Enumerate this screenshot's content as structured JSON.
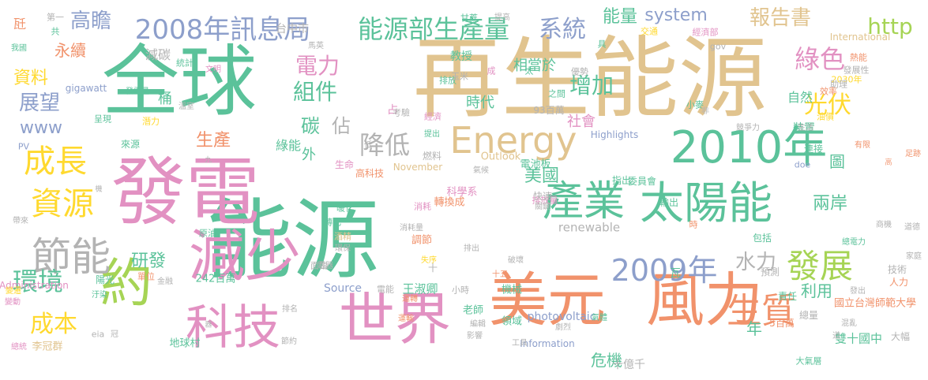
{
  "word_cloud": {
    "background": "#ffffff",
    "palette": {
      "green": "#5bc29a",
      "tan": "#e1c48f",
      "pink": "#e291c2",
      "orange": "#f1926b",
      "lime": "#a6d455",
      "yellow": "#ffd92f",
      "blue": "#8d9fcb",
      "gray": "#b3b3b3"
    },
    "words": [
      {
        "text": "能源",
        "weight": 100,
        "color": "green"
      },
      {
        "text": "再生能源",
        "weight": 95,
        "color": "tan"
      },
      {
        "text": "全球",
        "weight": 88,
        "color": "green"
      },
      {
        "text": "發電",
        "weight": 85,
        "color": "pink"
      },
      {
        "text": "美元",
        "weight": 70,
        "color": "orange"
      },
      {
        "text": "風力",
        "weight": 70,
        "color": "orange"
      },
      {
        "text": "世界",
        "weight": 66,
        "color": "pink"
      },
      {
        "text": "減少",
        "weight": 66,
        "color": "pink"
      },
      {
        "text": "約",
        "weight": 64,
        "color": "lime"
      },
      {
        "text": "科技",
        "weight": 58,
        "color": "pink"
      },
      {
        "text": "2010年",
        "weight": 56,
        "color": "green"
      },
      {
        "text": "太陽能",
        "weight": 56,
        "color": "green"
      },
      {
        "text": "產業",
        "weight": 50,
        "color": "green"
      },
      {
        "text": "節能",
        "weight": 50,
        "color": "gray"
      },
      {
        "text": "Energy",
        "weight": 46,
        "color": "tan"
      },
      {
        "text": "生質",
        "weight": 44,
        "color": "orange"
      },
      {
        "text": "發展",
        "weight": 42,
        "color": "lime"
      },
      {
        "text": "成長",
        "weight": 40,
        "color": "yellow"
      },
      {
        "text": "資源",
        "weight": 40,
        "color": "yellow"
      },
      {
        "text": "2009年",
        "weight": 38,
        "color": "blue"
      },
      {
        "text": "2008年訊息局",
        "weight": 34,
        "color": "blue"
      },
      {
        "text": "能源部生產量",
        "weight": 32,
        "color": "green"
      },
      {
        "text": "環境",
        "weight": 32,
        "color": "green"
      },
      {
        "text": "成本",
        "weight": 30,
        "color": "yellow"
      },
      {
        "text": "降低",
        "weight": 32,
        "color": "gray"
      },
      {
        "text": "綠色",
        "weight": 32,
        "color": "pink"
      },
      {
        "text": "光伏",
        "weight": 30,
        "color": "yellow"
      },
      {
        "text": "http",
        "weight": 28,
        "color": "lime"
      },
      {
        "text": "系統",
        "weight": 30,
        "color": "blue"
      },
      {
        "text": "組件",
        "weight": 28,
        "color": "green"
      },
      {
        "text": "電力",
        "weight": 28,
        "color": "pink"
      },
      {
        "text": "增加",
        "weight": 28,
        "color": "green"
      },
      {
        "text": "報告書",
        "weight": 26,
        "color": "tan"
      },
      {
        "text": "高瞻",
        "weight": 26,
        "color": "blue"
      },
      {
        "text": "展望",
        "weight": 26,
        "color": "blue"
      },
      {
        "text": "水力",
        "weight": 26,
        "color": "gray"
      },
      {
        "text": "system",
        "weight": 22,
        "color": "blue"
      },
      {
        "text": "能量",
        "weight": 22,
        "color": "green"
      },
      {
        "text": "佔",
        "weight": 24,
        "color": "gray"
      },
      {
        "text": "碳",
        "weight": 24,
        "color": "green"
      },
      {
        "text": "研發",
        "weight": 22,
        "color": "green"
      },
      {
        "text": "生產",
        "weight": 22,
        "color": "orange"
      },
      {
        "text": "美國",
        "weight": 22,
        "color": "green"
      },
      {
        "text": "兩岸",
        "weight": 22,
        "color": "green"
      },
      {
        "text": "利用",
        "weight": 20,
        "color": "green"
      },
      {
        "text": "危機",
        "weight": 20,
        "color": "green"
      },
      {
        "text": "www",
        "weight": 22,
        "color": "blue"
      },
      {
        "text": "資料",
        "weight": 22,
        "color": "yellow"
      },
      {
        "text": "永續",
        "weight": 20,
        "color": "orange"
      },
      {
        "text": "時代",
        "weight": 18,
        "color": "green"
      },
      {
        "text": "相當於",
        "weight": 18,
        "color": "green"
      },
      {
        "text": "年",
        "weight": 20,
        "color": "green"
      },
      {
        "text": "圖",
        "weight": 20,
        "color": "green"
      },
      {
        "text": "社會",
        "weight": 18,
        "color": "pink"
      },
      {
        "text": "renewable",
        "weight": 15,
        "color": "gray"
      },
      {
        "text": "雙十國中",
        "weight": 15,
        "color": "green"
      },
      {
        "text": "十億千",
        "weight": 14,
        "color": "gray"
      },
      {
        "text": "自然",
        "weight": 16,
        "color": "green"
      },
      {
        "text": "裝置",
        "weight": 14,
        "color": "green"
      },
      {
        "text": "減碳",
        "weight": 16,
        "color": "gray"
      },
      {
        "text": "桶",
        "weight": 18,
        "color": "green"
      },
      {
        "text": "外",
        "weight": 18,
        "color": "green"
      },
      {
        "text": "綠能",
        "weight": 16,
        "color": "green"
      },
      {
        "text": "王淑卿",
        "weight": 15,
        "color": "green"
      },
      {
        "text": "Source",
        "weight": 14,
        "color": "blue"
      },
      {
        "text": "photovoltaic",
        "weight": 14,
        "color": "blue"
      },
      {
        "text": "Outlook",
        "weight": 13,
        "color": "tan"
      },
      {
        "text": "International",
        "weight": 12,
        "color": "tan"
      },
      {
        "text": "gigawatt",
        "weight": 12,
        "color": "blue"
      },
      {
        "text": "Administration",
        "weight": 12,
        "color": "pink"
      },
      {
        "text": "Information",
        "weight": 12,
        "color": "blue"
      },
      {
        "text": "Highlights",
        "weight": 12,
        "color": "blue"
      },
      {
        "text": "November",
        "weight": 12,
        "color": "tan"
      },
      {
        "text": "國立台灣師範大學",
        "weight": 13,
        "color": "orange"
      },
      {
        "text": "李冠群",
        "weight": 13,
        "color": "tan"
      },
      {
        "text": "地球村",
        "weight": 13,
        "color": "green"
      },
      {
        "text": "242百萬",
        "weight": 13,
        "color": "green"
      },
      {
        "text": "93百萬",
        "weight": 12,
        "color": "gray"
      },
      {
        "text": "5百萬",
        "weight": 12,
        "color": "orange"
      },
      {
        "text": "2030年",
        "weight": 11,
        "color": "yellow"
      },
      {
        "text": "台中市",
        "weight": 14,
        "color": "gray"
      },
      {
        "text": "教授",
        "weight": 14,
        "color": "green"
      },
      {
        "text": "占",
        "weight": 14,
        "color": "pink"
      },
      {
        "text": "瓦",
        "weight": 14,
        "color": "green"
      },
      {
        "text": "科學系",
        "weight": 13,
        "color": "pink"
      },
      {
        "text": "轉換成",
        "weight": 13,
        "color": "orange"
      },
      {
        "text": "電池板",
        "weight": 13,
        "color": "green"
      },
      {
        "text": "委員會",
        "weight": 12,
        "color": "green"
      },
      {
        "text": "指出",
        "weight": 12,
        "color": "green"
      },
      {
        "text": "輸出",
        "weight": 12,
        "color": "green"
      },
      {
        "text": "包括",
        "weight": 12,
        "color": "green"
      },
      {
        "text": "預測",
        "weight": 12,
        "color": "gray"
      },
      {
        "text": "機械",
        "weight": 13,
        "color": "green"
      },
      {
        "text": "老師",
        "weight": 13,
        "color": "green"
      },
      {
        "text": "領域",
        "weight": 13,
        "color": "green"
      },
      {
        "text": "責任",
        "weight": 12,
        "color": "green"
      },
      {
        "text": "總量",
        "weight": 12,
        "color": "gray"
      },
      {
        "text": "技術",
        "weight": 12,
        "color": "gray"
      },
      {
        "text": "人力",
        "weight": 12,
        "color": "orange"
      },
      {
        "text": "大幅",
        "weight": 12,
        "color": "gray"
      },
      {
        "text": "大氣層",
        "weight": 11,
        "color": "green"
      },
      {
        "text": "調節",
        "weight": 13,
        "color": "orange"
      },
      {
        "text": "高科技",
        "weight": 12,
        "color": "orange"
      },
      {
        "text": "生命",
        "weight": 12,
        "color": "pink"
      },
      {
        "text": "燃料",
        "weight": 12,
        "color": "gray"
      },
      {
        "text": "排放",
        "weight": 11,
        "color": "green"
      },
      {
        "text": "排放量",
        "weight": 11,
        "color": "pink"
      },
      {
        "text": "經濟",
        "weight": 11,
        "color": "pink"
      },
      {
        "text": "經濟部",
        "weight": 11,
        "color": "pink"
      },
      {
        "text": "之間",
        "weight": 11,
        "color": "green"
      },
      {
        "text": "考驗",
        "weight": 11,
        "color": "gray"
      },
      {
        "text": "玉米",
        "weight": 11,
        "color": "gray"
      },
      {
        "text": "甘蔗",
        "weight": 11,
        "color": "green"
      },
      {
        "text": "優勢",
        "weight": 11,
        "color": "gray"
      },
      {
        "text": "交通",
        "weight": 11,
        "color": "yellow"
      },
      {
        "text": "熱能",
        "weight": 11,
        "color": "orange"
      },
      {
        "text": "發展性",
        "weight": 11,
        "color": "gray"
      },
      {
        "text": "效率",
        "weight": 11,
        "color": "orange"
      },
      {
        "text": "助理",
        "weight": 11,
        "color": "gray"
      },
      {
        "text": "油價",
        "weight": 11,
        "color": "yellow"
      },
      {
        "text": "gov",
        "weight": 11,
        "color": "gray"
      },
      {
        "text": "小麥",
        "weight": 11,
        "color": "green"
      },
      {
        "text": "競爭力",
        "weight": 10,
        "color": "gray"
      },
      {
        "text": "生活",
        "weight": 10,
        "color": "gray"
      },
      {
        "text": "連接",
        "weight": 12,
        "color": "green"
      },
      {
        "text": "有限",
        "weight": 10,
        "color": "orange"
      },
      {
        "text": "足跡",
        "weight": 10,
        "color": "orange"
      },
      {
        "text": "doe",
        "weight": 11,
        "color": "blue"
      },
      {
        "text": "溫室",
        "weight": 10,
        "color": "gray"
      },
      {
        "text": "發電量",
        "weight": 10,
        "color": "green"
      },
      {
        "text": "潛力",
        "weight": 11,
        "color": "yellow"
      },
      {
        "text": "呈現",
        "weight": 11,
        "color": "green"
      },
      {
        "text": "統計",
        "weight": 11,
        "color": "green"
      },
      {
        "text": "文明",
        "weight": 10,
        "color": "pink"
      },
      {
        "text": "馬英",
        "weight": 10,
        "color": "gray"
      },
      {
        "text": "第一",
        "weight": 11,
        "color": "gray"
      },
      {
        "text": "我國",
        "weight": 10,
        "color": "green"
      },
      {
        "text": "共",
        "weight": 11,
        "color": "green"
      },
      {
        "text": "來源",
        "weight": 12,
        "color": "green"
      },
      {
        "text": "PV",
        "weight": 11,
        "color": "blue"
      },
      {
        "text": "九",
        "weight": 9,
        "color": "gray"
      },
      {
        "text": "快速",
        "weight": 12,
        "color": "gray"
      },
      {
        "text": "暖化",
        "weight": 11,
        "color": "green"
      },
      {
        "text": "轉化",
        "weight": 11,
        "color": "green"
      },
      {
        "text": "原油",
        "weight": 11,
        "color": "green"
      },
      {
        "text": "酒精",
        "weight": 11,
        "color": "tan"
      },
      {
        "text": "面臨",
        "weight": 11,
        "color": "gray"
      },
      {
        "text": "消耗",
        "weight": 11,
        "color": "pink"
      },
      {
        "text": "消耗量",
        "weight": 10,
        "color": "gray"
      },
      {
        "text": "關鍵",
        "weight": 10,
        "color": "gray"
      },
      {
        "text": "陽光",
        "weight": 12,
        "color": "green"
      },
      {
        "text": "單位",
        "weight": 11,
        "color": "orange"
      },
      {
        "text": "金融",
        "weight": 10,
        "color": "gray"
      },
      {
        "text": "汙染",
        "weight": 10,
        "color": "green"
      },
      {
        "text": "失序",
        "weight": 10,
        "color": "yellow"
      },
      {
        "text": "電器",
        "weight": 10,
        "color": "gray"
      },
      {
        "text": "環保",
        "weight": 10,
        "color": "gray"
      },
      {
        "text": "排出",
        "weight": 10,
        "color": "gray"
      },
      {
        "text": "電能",
        "weight": 11,
        "color": "gray"
      },
      {
        "text": "小時",
        "weight": 11,
        "color": "gray"
      },
      {
        "text": "十五",
        "weight": 10,
        "color": "orange"
      },
      {
        "text": "破壞",
        "weight": 10,
        "color": "gray"
      },
      {
        "text": "編輯",
        "weight": 10,
        "color": "gray"
      },
      {
        "text": "影響",
        "weight": 10,
        "color": "gray"
      },
      {
        "text": "劇烈",
        "weight": 10,
        "color": "gray"
      },
      {
        "text": "氣體",
        "weight": 10,
        "color": "green"
      },
      {
        "text": "工具",
        "weight": 10,
        "color": "gray"
      },
      {
        "text": "道",
        "weight": 10,
        "color": "gray"
      },
      {
        "text": "混亂",
        "weight": 10,
        "color": "gray"
      },
      {
        "text": "家庭",
        "weight": 10,
        "color": "gray"
      },
      {
        "text": "道德",
        "weight": 10,
        "color": "gray"
      },
      {
        "text": "商機",
        "weight": 10,
        "color": "gray"
      },
      {
        "text": "總電力",
        "weight": 10,
        "color": "green"
      },
      {
        "text": "發出",
        "weight": 10,
        "color": "gray"
      },
      {
        "text": "運轉",
        "weight": 10,
        "color": "orange"
      },
      {
        "text": "運輸",
        "weight": 10,
        "color": "orange"
      },
      {
        "text": "排名",
        "weight": 10,
        "color": "gray"
      },
      {
        "text": "節約",
        "weight": 10,
        "color": "gray"
      },
      {
        "text": "冠",
        "weight": 10,
        "color": "gray"
      },
      {
        "text": "eia",
        "weight": 11,
        "color": "gray"
      },
      {
        "text": "總統",
        "weight": 10,
        "color": "pink"
      },
      {
        "text": "變動",
        "weight": 10,
        "color": "pink"
      },
      {
        "text": "變遷",
        "weight": 10,
        "color": "yellow"
      },
      {
        "text": "帶來",
        "weight": 10,
        "color": "gray"
      },
      {
        "text": "機",
        "weight": 9,
        "color": "gray"
      },
      {
        "text": "器",
        "weight": 9,
        "color": "gray"
      },
      {
        "text": "瓩",
        "weight": 16,
        "color": "orange"
      },
      {
        "text": "低",
        "weight": 10,
        "color": "gray"
      },
      {
        "text": "提出",
        "weight": 10,
        "color": "green"
      },
      {
        "text": "提高",
        "weight": 10,
        "color": "gray"
      },
      {
        "text": "具",
        "weight": 11,
        "color": "green"
      },
      {
        "text": "太",
        "weight": 11,
        "color": "green"
      },
      {
        "text": "成",
        "weight": 11,
        "color": "pink"
      },
      {
        "text": "非",
        "weight": 10,
        "color": "gray"
      },
      {
        "text": "高",
        "weight": 9,
        "color": "orange"
      },
      {
        "text": "時",
        "weight": 11,
        "color": "orange"
      },
      {
        "text": "十",
        "weight": 12,
        "color": "gray"
      },
      {
        "text": "氣候",
        "weight": 10,
        "color": "gray"
      }
    ]
  }
}
